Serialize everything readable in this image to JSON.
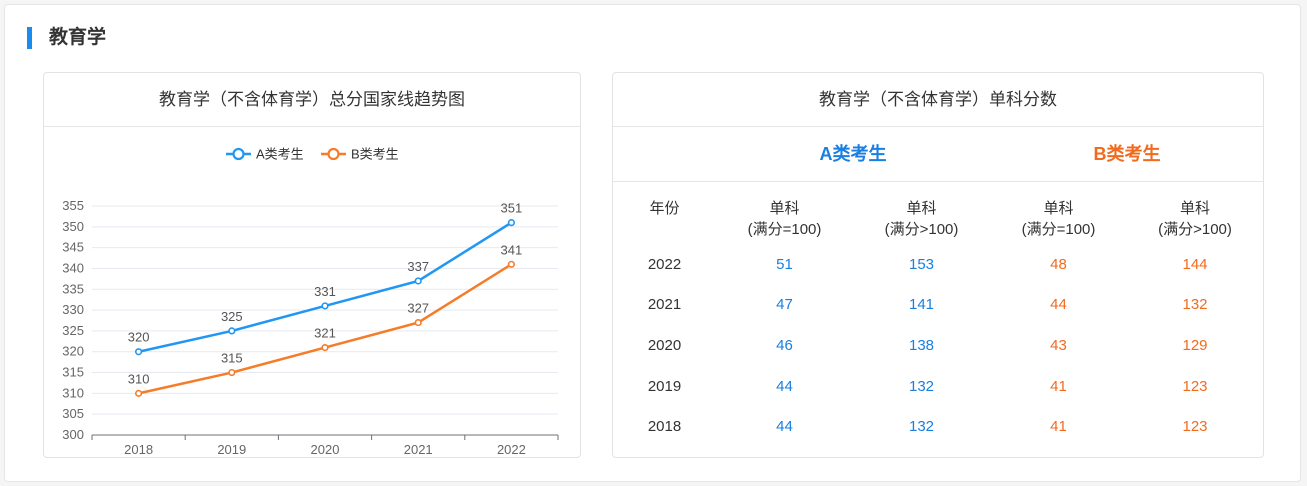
{
  "section": {
    "title": "教育学"
  },
  "chart_card": {
    "title": "教育学（不含体育学）总分国家线趋势图"
  },
  "chart_data": {
    "type": "line",
    "categories": [
      "2018",
      "2019",
      "2020",
      "2021",
      "2022"
    ],
    "series": [
      {
        "name": "A类考生",
        "values": [
          320,
          325,
          331,
          337,
          351
        ],
        "color": "#2196f3"
      },
      {
        "name": "B类考生",
        "values": [
          310,
          315,
          321,
          327,
          341
        ],
        "color": "#f57c28"
      }
    ],
    "ylim": [
      300,
      355
    ],
    "yticks": [
      300,
      305,
      310,
      315,
      320,
      325,
      330,
      335,
      340,
      345,
      350,
      355
    ],
    "grid": true,
    "legend": "top-center"
  },
  "table_card": {
    "title": "教育学（不含体育学）单科分数",
    "class_a": "A类考生",
    "class_b": "B类考生",
    "colors": {
      "a": "#1a7fe0",
      "b": "#f26b1d"
    },
    "headers": {
      "year": "年份",
      "a1_line1": "单科",
      "a1_line2": "(满分=100)",
      "a2_line1": "单科",
      "a2_line2": "(满分>100)",
      "b1_line1": "单科",
      "b1_line2": "(满分=100)",
      "b2_line1": "单科",
      "b2_line2": "(满分>100)"
    },
    "rows": [
      {
        "year": "2022",
        "a_100": "51",
        "a_gt100": "153",
        "b_100": "48",
        "b_gt100": "144"
      },
      {
        "year": "2021",
        "a_100": "47",
        "a_gt100": "141",
        "b_100": "44",
        "b_gt100": "132"
      },
      {
        "year": "2020",
        "a_100": "46",
        "a_gt100": "138",
        "b_100": "43",
        "b_gt100": "129"
      },
      {
        "year": "2019",
        "a_100": "44",
        "a_gt100": "132",
        "b_100": "41",
        "b_gt100": "123"
      },
      {
        "year": "2018",
        "a_100": "44",
        "a_gt100": "132",
        "b_100": "41",
        "b_gt100": "123"
      }
    ]
  }
}
